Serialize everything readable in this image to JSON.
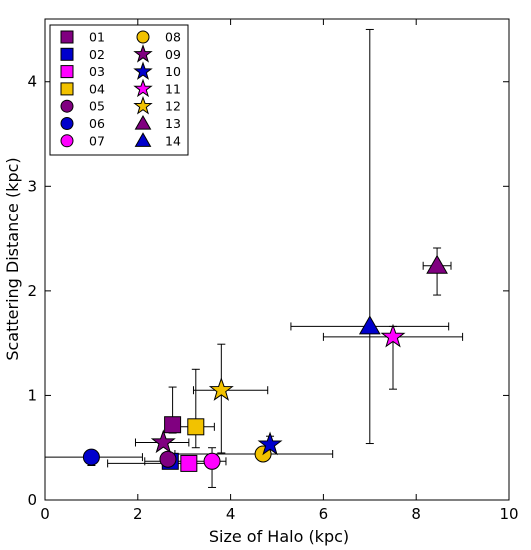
{
  "chart_data": {
    "type": "scatter",
    "xlabel": "Size of Halo (kpc)",
    "ylabel": "Scattering Distance (kpc)",
    "xlim": [
      0,
      10
    ],
    "ylim": [
      0,
      4.6
    ],
    "xticks": [
      0,
      2,
      4,
      6,
      8,
      10
    ],
    "yticks": [
      0,
      1,
      2,
      3,
      4
    ],
    "grid": false,
    "legend_position": "top-left",
    "series": [
      {
        "name": "01",
        "marker": "square",
        "color": "#800080",
        "x": 2.75,
        "y": 0.72,
        "xerr": [
          0.05,
          0.05
        ],
        "yerr": [
          0.08,
          0.36
        ]
      },
      {
        "name": "02",
        "marker": "square",
        "color": "#0000cc",
        "x": 2.7,
        "y": 0.37,
        "xerr": [
          0.55,
          0.55
        ],
        "yerr": [
          0.03,
          0.03
        ]
      },
      {
        "name": "03",
        "marker": "square",
        "color": "#ff00ff",
        "x": 3.1,
        "y": 0.35,
        "xerr": [
          1.75,
          0.6
        ],
        "yerr": [
          0.03,
          0.03
        ]
      },
      {
        "name": "04",
        "marker": "square",
        "color": "#f2c200",
        "x": 3.25,
        "y": 0.7,
        "xerr": [
          0.4,
          0.4
        ],
        "yerr": [
          0.2,
          0.55
        ]
      },
      {
        "name": "05",
        "marker": "circle",
        "color": "#800080",
        "x": 2.65,
        "y": 0.39,
        "xerr": [
          0.1,
          0.1
        ],
        "yerr": [
          0.04,
          0.04
        ]
      },
      {
        "name": "06",
        "marker": "circle",
        "color": "#0000cc",
        "x": 1.0,
        "y": 0.41,
        "xerr": [
          1.1,
          1.1
        ],
        "yerr": [
          0.08,
          0.04
        ]
      },
      {
        "name": "07",
        "marker": "circle",
        "color": "#ff00ff",
        "x": 3.6,
        "y": 0.37,
        "xerr": [
          0.6,
          0.3
        ],
        "yerr": [
          0.25,
          0.13
        ]
      },
      {
        "name": "08",
        "marker": "circle",
        "color": "#f2c200",
        "x": 4.7,
        "y": 0.44,
        "xerr": [
          1.9,
          1.5
        ],
        "yerr": [
          0.03,
          0.03
        ]
      },
      {
        "name": "09",
        "marker": "star",
        "color": "#800080",
        "x": 2.55,
        "y": 0.55,
        "xerr": [
          0.6,
          0.55
        ],
        "yerr": [
          0.03,
          0.03
        ]
      },
      {
        "name": "10",
        "marker": "star",
        "color": "#0000cc",
        "x": 4.85,
        "y": 0.53,
        "xerr": [
          0.05,
          0.05
        ],
        "yerr": [
          0.03,
          0.08
        ]
      },
      {
        "name": "11",
        "marker": "star",
        "color": "#ff00ff",
        "x": 7.5,
        "y": 1.56,
        "xerr": [
          1.5,
          1.5
        ],
        "yerr": [
          0.5,
          0.1
        ]
      },
      {
        "name": "12",
        "marker": "star",
        "color": "#f2c200",
        "x": 3.8,
        "y": 1.05,
        "xerr": [
          0.6,
          1.0
        ],
        "yerr": [
          0.6,
          0.44
        ]
      },
      {
        "name": "13",
        "marker": "triangle",
        "color": "#800080",
        "x": 8.45,
        "y": 2.24,
        "xerr": [
          0.3,
          0.3
        ],
        "yerr": [
          0.28,
          0.17
        ]
      },
      {
        "name": "14",
        "marker": "triangle",
        "color": "#0000cc",
        "x": 7.0,
        "y": 1.66,
        "xerr": [
          1.7,
          1.7
        ],
        "yerr": [
          1.12,
          2.84
        ]
      }
    ]
  }
}
